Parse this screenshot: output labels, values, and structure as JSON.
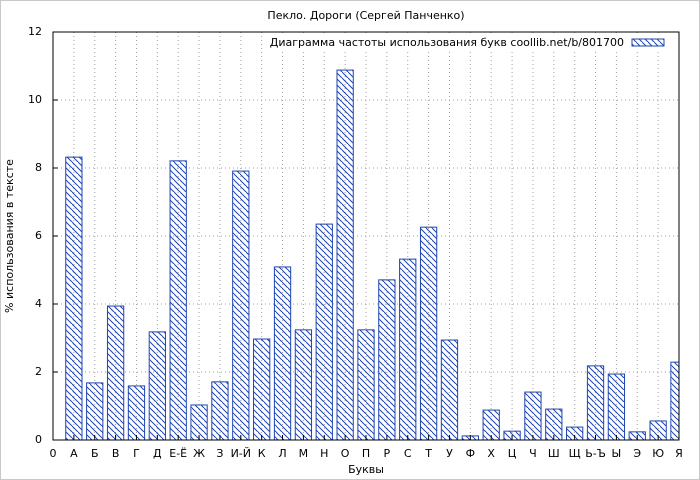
{
  "chart_data": {
    "type": "bar",
    "title": "Пекло. Дороги (Сергей Панченко)",
    "x_label": "Буквы",
    "y_label": "% использования в тексте",
    "categories": [
      "0",
      "А",
      "Б",
      "В",
      "Г",
      "Д",
      "Е-Ё",
      "Ж",
      "З",
      "И-Й",
      "К",
      "Л",
      "М",
      "Н",
      "О",
      "П",
      "Р",
      "С",
      "Т",
      "У",
      "Ф",
      "Х",
      "Ц",
      "Ч",
      "Ш",
      "Щ",
      "Ь-Ъ",
      "Ы",
      "Э",
      "Ю",
      "Я"
    ],
    "series": [
      {
        "name": "Диаграмма частоты использования букв coollib.net/b/801700",
        "color": "#1f45b0",
        "values": [
          null,
          8.32,
          1.68,
          3.94,
          1.59,
          3.18,
          8.21,
          1.03,
          1.71,
          7.91,
          2.97,
          5.09,
          3.24,
          6.35,
          10.88,
          3.24,
          4.71,
          5.32,
          6.26,
          2.94,
          0.12,
          0.88,
          0.26,
          1.41,
          0.91,
          0.38,
          2.18,
          1.94,
          0.24,
          0.56,
          2.29
        ]
      }
    ],
    "ylim": [
      0,
      12
    ],
    "yticks": [
      0,
      2,
      4,
      6,
      8,
      10,
      12
    ],
    "grid": true,
    "legend": "top-right"
  }
}
